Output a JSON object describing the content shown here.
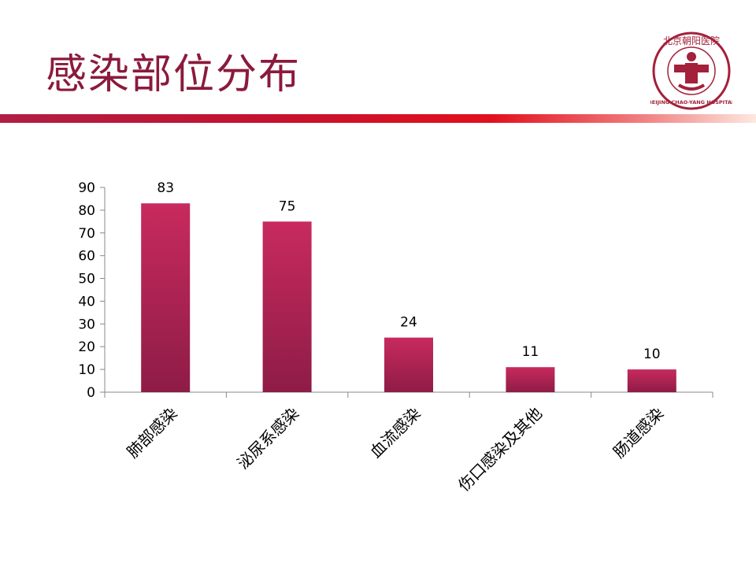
{
  "slide": {
    "title": "感染部位分布"
  },
  "logo": {
    "icon": "hospital-logo-icon",
    "top_text": "北京朝阳医院",
    "bottom_text": "BEIJING CHAO-YANG HOSPITAL",
    "color": "#a3213a"
  },
  "chart_data": {
    "type": "bar",
    "title": "",
    "xlabel": "",
    "ylabel": "",
    "categories": [
      "肺部感染",
      "泌尿系感染",
      "血流感染",
      "伤口感染及其他",
      "肠道感染"
    ],
    "values": [
      83,
      75,
      24,
      11,
      10
    ],
    "ylim": [
      0,
      90
    ],
    "yticks": [
      0,
      10,
      20,
      30,
      40,
      50,
      60,
      70,
      80,
      90
    ],
    "bar_color_top": "#c82a5e",
    "bar_color_bottom": "#8e1c46",
    "grid": false,
    "legend": "none",
    "data_labels": true
  }
}
